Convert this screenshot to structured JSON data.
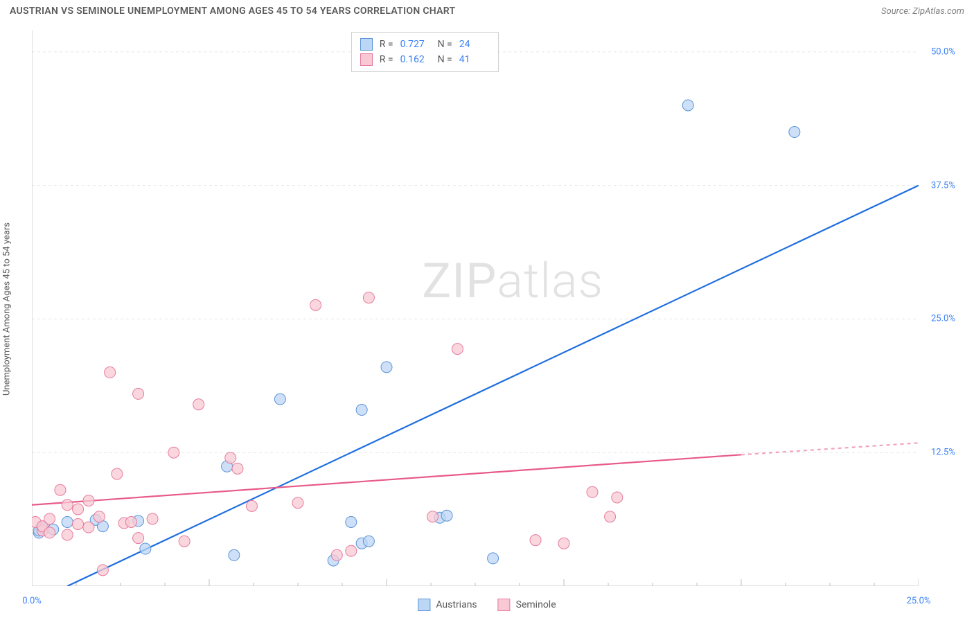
{
  "header": {
    "title": "AUSTRIAN VS SEMINOLE UNEMPLOYMENT AMONG AGES 45 TO 54 YEARS CORRELATION CHART",
    "source": "Source: ZipAtlas.com"
  },
  "ylabel": "Unemployment Among Ages 45 to 54 years",
  "watermark": {
    "bold": "ZIP",
    "thin": "atlas"
  },
  "chart": {
    "type": "scatter_with_regression",
    "xlim": [
      0,
      25
    ],
    "ylim": [
      0,
      52
    ],
    "background_color": "#ffffff",
    "grid_color": "#e5e5e5",
    "axis_color": "#bfbfbf",
    "ytick_values": [
      12.5,
      25.0,
      37.5,
      50.0
    ],
    "ytick_labels": [
      "12.5%",
      "25.0%",
      "37.5%",
      "50.0%"
    ],
    "xtick_values": [
      0,
      5,
      10,
      15,
      20,
      25
    ],
    "xtick_labels": [
      "0.0%",
      "",
      "",
      "",
      "",
      "25.0%"
    ],
    "xtick_minor_step": 1.25,
    "ylabel_fontsize": 13,
    "ticklabel_color": "#3b82f6",
    "series": [
      {
        "name": "Austrians",
        "marker_fill": "#bcd6f5",
        "marker_stroke": "#5b93d6",
        "marker_radius": 8,
        "line_color": "#1f6fe0",
        "line_width": 2.2,
        "r": 0.727,
        "n": 24,
        "regression": {
          "x0": 1.0,
          "y0": 0.0,
          "x1": 25.0,
          "y1": 37.5
        },
        "points": [
          [
            0.2,
            5.0
          ],
          [
            0.2,
            5.2
          ],
          [
            0.3,
            5.5
          ],
          [
            0.6,
            5.3
          ],
          [
            1.0,
            6.0
          ],
          [
            1.8,
            6.2
          ],
          [
            2.0,
            5.6
          ],
          [
            3.0,
            6.1
          ],
          [
            3.2,
            3.5
          ],
          [
            5.5,
            11.2
          ],
          [
            5.7,
            2.9
          ],
          [
            7.0,
            17.5
          ],
          [
            8.5,
            2.4
          ],
          [
            9.0,
            6.0
          ],
          [
            9.3,
            16.5
          ],
          [
            9.3,
            4.0
          ],
          [
            9.5,
            4.2
          ],
          [
            10.0,
            20.5
          ],
          [
            11.5,
            6.4
          ],
          [
            11.7,
            6.6
          ],
          [
            13.0,
            2.6
          ],
          [
            18.5,
            45.0
          ],
          [
            21.5,
            42.5
          ]
        ]
      },
      {
        "name": "Seminole",
        "marker_fill": "#f8c9d4",
        "marker_stroke": "#e77a9c",
        "marker_radius": 8,
        "line_color": "#e85a8a",
        "line_width": 2.2,
        "r": 0.162,
        "n": 41,
        "regression": {
          "x0": 0.0,
          "y0": 7.6,
          "x1": 20.0,
          "y1": 12.3
        },
        "regression_extrapolate": {
          "x0": 20.0,
          "y0": 12.3,
          "x1": 25.0,
          "y1": 13.4
        },
        "points": [
          [
            0.1,
            6.0
          ],
          [
            0.3,
            5.2
          ],
          [
            0.3,
            5.6
          ],
          [
            0.5,
            5.0
          ],
          [
            0.5,
            6.3
          ],
          [
            0.8,
            9.0
          ],
          [
            1.0,
            4.8
          ],
          [
            1.0,
            7.6
          ],
          [
            1.3,
            5.8
          ],
          [
            1.3,
            7.2
          ],
          [
            1.6,
            5.5
          ],
          [
            1.6,
            8.0
          ],
          [
            1.9,
            6.5
          ],
          [
            2.0,
            1.5
          ],
          [
            2.2,
            20.0
          ],
          [
            2.4,
            10.5
          ],
          [
            2.6,
            5.9
          ],
          [
            2.8,
            6.0
          ],
          [
            3.0,
            4.5
          ],
          [
            3.0,
            18.0
          ],
          [
            3.4,
            6.3
          ],
          [
            4.0,
            12.5
          ],
          [
            4.3,
            4.2
          ],
          [
            4.7,
            17.0
          ],
          [
            5.6,
            12.0
          ],
          [
            5.8,
            11.0
          ],
          [
            6.2,
            7.5
          ],
          [
            7.5,
            7.8
          ],
          [
            8.0,
            26.3
          ],
          [
            8.6,
            2.9
          ],
          [
            9.0,
            3.3
          ],
          [
            9.5,
            27.0
          ],
          [
            11.3,
            6.5
          ],
          [
            12.0,
            22.2
          ],
          [
            14.2,
            4.3
          ],
          [
            15.0,
            4.0
          ],
          [
            15.8,
            8.8
          ],
          [
            16.3,
            6.5
          ],
          [
            16.5,
            8.3
          ]
        ]
      }
    ]
  },
  "legend_top": {
    "rows": [
      {
        "swatch_fill": "#bcd6f5",
        "swatch_stroke": "#5b93d6",
        "r_label": "R =",
        "r_val": "0.727",
        "n_label": "N =",
        "n_val": "24"
      },
      {
        "swatch_fill": "#f8c9d4",
        "swatch_stroke": "#e77a9c",
        "r_label": "R =",
        "r_val": "0.162",
        "n_label": "N =",
        "n_val": "41"
      }
    ]
  },
  "legend_bottom": {
    "items": [
      {
        "swatch_fill": "#bcd6f5",
        "swatch_stroke": "#5b93d6",
        "label": "Austrians"
      },
      {
        "swatch_fill": "#f8c9d4",
        "swatch_stroke": "#e77a9c",
        "label": "Seminole"
      }
    ]
  }
}
